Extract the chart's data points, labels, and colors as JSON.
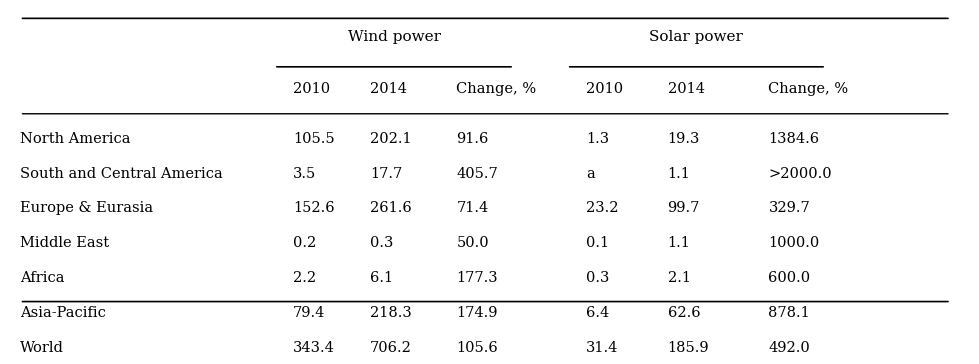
{
  "title": "",
  "wind_header": "Wind power",
  "solar_header": "Solar power",
  "sub_headers": [
    "2010",
    "2014",
    "Change, %"
  ],
  "regions": [
    "North America",
    "South and Central America",
    "Europe & Eurasia",
    "Middle East",
    "Africa",
    "Asia-Pacific",
    "World"
  ],
  "wind_data": [
    [
      "105.5",
      "202.1",
      "91.6"
    ],
    [
      "3.5",
      "17.7",
      "405.7"
    ],
    [
      "152.6",
      "261.6",
      "71.4"
    ],
    [
      "0.2",
      "0.3",
      "50.0"
    ],
    [
      "2.2",
      "6.1",
      "177.3"
    ],
    [
      "79.4",
      "218.3",
      "174.9"
    ],
    [
      "343.4",
      "706.2",
      "105.6"
    ]
  ],
  "solar_data": [
    [
      "1.3",
      "19.3",
      "1384.6"
    ],
    [
      "a",
      "1.1",
      ">2000.0"
    ],
    [
      "23.2",
      "99.7",
      "329.7"
    ],
    [
      "0.1",
      "1.1",
      "1000.0"
    ],
    [
      "0.3",
      "2.1",
      "600.0"
    ],
    [
      "6.4",
      "62.6",
      "878.1"
    ],
    [
      "31.4",
      "185.9",
      "492.0"
    ]
  ],
  "bg_color": "#ffffff",
  "text_color": "#000000",
  "font_size": 10.5,
  "header_font_size": 11
}
